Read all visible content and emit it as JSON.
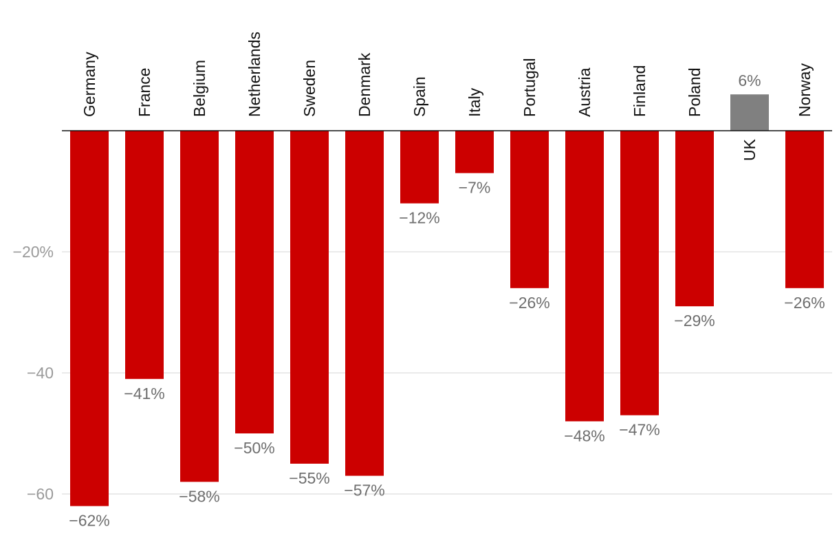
{
  "chart_data": {
    "type": "bar",
    "title": "",
    "xlabel": "",
    "ylabel": "",
    "ylim": [
      -62,
      6
    ],
    "yticks": [
      {
        "value": -20,
        "label": "−20%"
      },
      {
        "value": -40,
        "label": "−40"
      },
      {
        "value": -60,
        "label": "−60"
      }
    ],
    "grid": true,
    "categories": [
      "Germany",
      "France",
      "Belgium",
      "Netherlands",
      "Sweden",
      "Denmark",
      "Spain",
      "Italy",
      "Portugal",
      "Austria",
      "Finland",
      "Poland",
      "UK",
      "Norway"
    ],
    "values": [
      -62,
      -41,
      -58,
      -50,
      -55,
      -57,
      -12,
      -7,
      -26,
      -48,
      -47,
      -29,
      6,
      -26
    ],
    "value_labels": [
      "−62%",
      "−41%",
      "−58%",
      "−50%",
      "−55%",
      "−57%",
      "−12%",
      "−7%",
      "−26%",
      "−48%",
      "−47%",
      "−29%",
      "6%",
      "−26%"
    ],
    "colors": {
      "negative": "#cc0000",
      "positive": "#808080",
      "grid": "#e3e3e3",
      "axis": "#111111",
      "tick_text": "#9a9a9a",
      "value_text": "#6e6e6e",
      "category_text": "#111111"
    }
  }
}
